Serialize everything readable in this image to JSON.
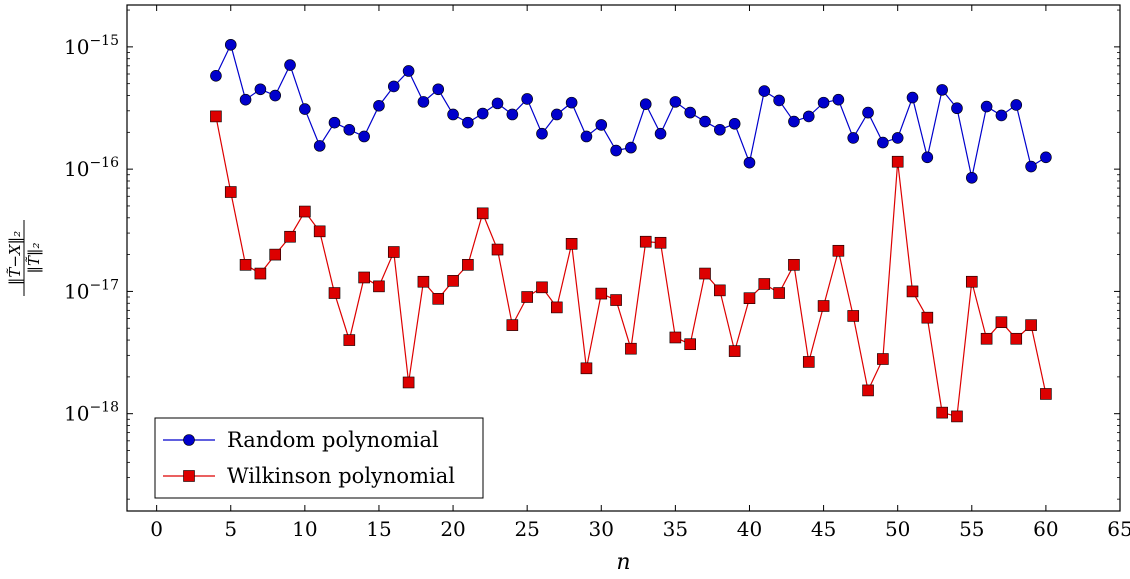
{
  "chart_data": {
    "type": "line",
    "title": "",
    "xlabel": "n",
    "ylabel": "‖T̃−X‖₂ / ‖T̃‖₂",
    "ylabel_numerator": "‖T̃−X‖₂",
    "ylabel_denominator": "‖T̃‖₂",
    "xlim": [
      -2,
      65
    ],
    "ylim": [
      1.6e-19,
      2.2e-15
    ],
    "yscale": "log",
    "xticks": [
      0,
      5,
      10,
      15,
      20,
      25,
      30,
      35,
      40,
      45,
      50,
      55,
      60,
      65
    ],
    "xtick_labels": [
      "0",
      "5",
      "10",
      "15",
      "20",
      "25",
      "30",
      "35",
      "40",
      "45",
      "50",
      "55",
      "60",
      "65"
    ],
    "yticks": [
      {
        "value": 1e-15,
        "mantissa": "10",
        "exponent": "−15"
      },
      {
        "value": 1e-16,
        "mantissa": "10",
        "exponent": "−16"
      },
      {
        "value": 1e-17,
        "mantissa": "10",
        "exponent": "−17"
      },
      {
        "value": 1e-18,
        "mantissa": "10",
        "exponent": "−18"
      }
    ],
    "grid": false,
    "legend_position": "bottom-left",
    "series": [
      {
        "name": "Random polynomial",
        "color": "#0000cc",
        "marker": "circle",
        "x": [
          4,
          5,
          6,
          7,
          8,
          9,
          10,
          11,
          12,
          13,
          14,
          15,
          16,
          17,
          18,
          19,
          20,
          21,
          22,
          23,
          24,
          25,
          26,
          27,
          28,
          29,
          30,
          31,
          32,
          33,
          34,
          35,
          36,
          37,
          38,
          39,
          40,
          41,
          42,
          43,
          44,
          45,
          46,
          47,
          48,
          49,
          50,
          51,
          52,
          53,
          54,
          55,
          56,
          57,
          58,
          59,
          60
        ],
        "y": [
          5.8e-16,
          1.04e-15,
          3.7e-16,
          4.5e-16,
          4e-16,
          7.1e-16,
          3.1e-16,
          1.55e-16,
          2.4e-16,
          2.1e-16,
          1.85e-16,
          3.3e-16,
          4.75e-16,
          6.35e-16,
          3.55e-16,
          4.5e-16,
          2.8e-16,
          2.4e-16,
          2.85e-16,
          3.45e-16,
          2.8e-16,
          3.75e-16,
          1.95e-16,
          2.8e-16,
          3.5e-16,
          1.85e-16,
          2.3e-16,
          1.42e-16,
          1.5e-16,
          3.4e-16,
          1.95e-16,
          3.55e-16,
          2.9e-16,
          2.45e-16,
          2.1e-16,
          2.35e-16,
          1.13e-16,
          4.35e-16,
          3.65e-16,
          2.45e-16,
          2.7e-16,
          3.5e-16,
          3.7e-16,
          1.8e-16,
          2.9e-16,
          1.65e-16,
          1.8e-16,
          3.85e-16,
          1.25e-16,
          4.45e-16,
          3.15e-16,
          8.5e-17,
          3.25e-16,
          2.75e-16,
          3.35e-16,
          1.05e-16,
          1.25e-16
        ]
      },
      {
        "name": "Wilkinson polynomial",
        "color": "#dd0000",
        "marker": "square",
        "x": [
          4,
          5,
          6,
          7,
          8,
          9,
          10,
          11,
          12,
          13,
          14,
          15,
          16,
          17,
          18,
          19,
          20,
          21,
          22,
          23,
          24,
          25,
          26,
          27,
          28,
          29,
          30,
          31,
          32,
          33,
          34,
          35,
          36,
          37,
          38,
          39,
          40,
          41,
          42,
          43,
          44,
          45,
          46,
          47,
          48,
          49,
          50,
          51,
          52,
          53,
          54,
          55,
          56,
          57,
          58,
          59,
          60
        ],
        "y": [
          2.7e-16,
          6.5e-17,
          1.65e-17,
          1.4e-17,
          2e-17,
          2.8e-17,
          4.5e-17,
          3.1e-17,
          9.7e-18,
          4e-18,
          1.3e-17,
          1.1e-17,
          2.1e-17,
          1.8e-18,
          1.2e-17,
          8.7e-18,
          1.22e-17,
          1.65e-17,
          4.35e-17,
          2.2e-17,
          5.3e-18,
          9e-18,
          1.08e-17,
          7.4e-18,
          2.45e-17,
          2.35e-18,
          9.6e-18,
          8.5e-18,
          3.4e-18,
          2.55e-17,
          2.5e-17,
          4.2e-18,
          3.7e-18,
          1.4e-17,
          1.02e-17,
          3.25e-18,
          8.8e-18,
          1.15e-17,
          9.7e-18,
          1.65e-17,
          2.65e-18,
          7.6e-18,
          2.15e-17,
          6.3e-18,
          1.55e-18,
          2.8e-18,
          1.15e-16,
          1e-17,
          6.1e-18,
          1.02e-18,
          9.5e-19,
          1.2e-17,
          4.1e-18,
          5.6e-18,
          4.1e-18,
          5.3e-18,
          1.45e-18
        ]
      }
    ]
  }
}
